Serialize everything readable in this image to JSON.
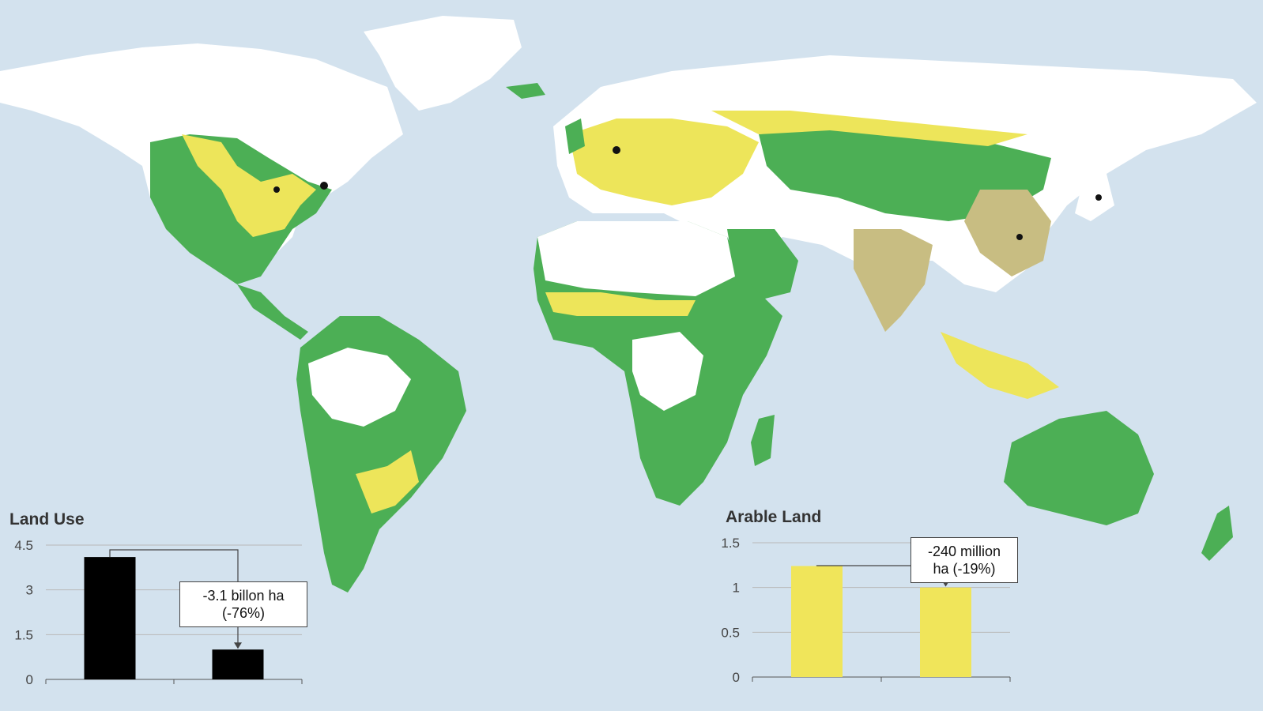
{
  "colors": {
    "ocean": "#d3e2ee",
    "land_unused": "#ffffff",
    "grazing_green": "#4caf55",
    "cropland_yellow": "#ede55a",
    "cropland_tan": "#c8bd82",
    "urban_black": "#111111",
    "bar_land_use": "#000000",
    "bar_arable": "#f0e55a"
  },
  "map": {
    "icon": "world-map-land-use"
  },
  "charts": {
    "land_use": {
      "title": "Land Use",
      "callout_line1": "-3.1 billon ha",
      "callout_line2": "(-76%)"
    },
    "arable": {
      "title": "Arable Land",
      "callout_line1": "-240 million",
      "callout_line2": "ha (-19%)"
    }
  },
  "chart_data": [
    {
      "type": "bar",
      "title": "Land Use",
      "categories": [
        "",
        ""
      ],
      "values": [
        4.1,
        1.0
      ],
      "ylim": [
        0,
        4.5
      ],
      "yticks": [
        "0",
        "1.5",
        "3",
        "4.5"
      ],
      "grid": true,
      "annotation": "-3.1 billon ha (-76%)"
    },
    {
      "type": "bar",
      "title": "Arable Land",
      "categories": [
        "",
        ""
      ],
      "values": [
        1.24,
        1.0
      ],
      "ylim": [
        0,
        1.5
      ],
      "yticks": [
        "0",
        "0.5",
        "1",
        "1.5"
      ],
      "grid": true,
      "annotation": "-240 million ha (-19%)"
    }
  ]
}
